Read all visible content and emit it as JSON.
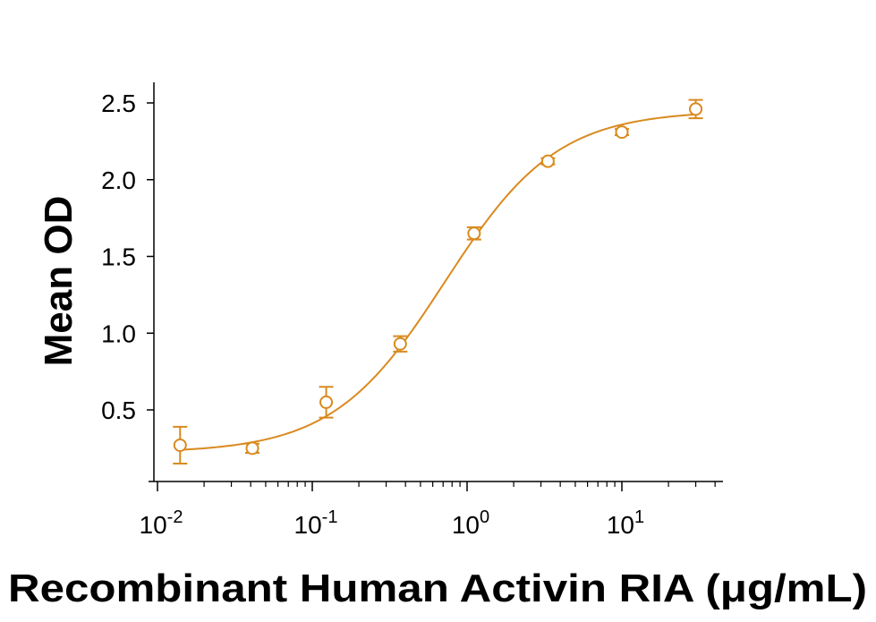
{
  "chart_data": {
    "type": "scatter",
    "title": "",
    "xlabel": "Recombinant Human Activin RIA (μg/mL)",
    "ylabel": "Mean OD",
    "x_scale": "log",
    "xlim": [
      0.011,
      45
    ],
    "ylim": [
      0.1,
      2.6
    ],
    "grid": false,
    "legend": "none",
    "color": "#d98a1e",
    "x_ticks": [
      {
        "value": 0.01,
        "base": "10",
        "exp": "-2"
      },
      {
        "value": 0.1,
        "base": "10",
        "exp": "-1"
      },
      {
        "value": 1,
        "base": "10",
        "exp": "0"
      },
      {
        "value": 10,
        "base": "10",
        "exp": "1"
      }
    ],
    "y_ticks": [
      {
        "value": 0.5,
        "label": "0.5"
      },
      {
        "value": 1.0,
        "label": "1.0"
      },
      {
        "value": 1.5,
        "label": "1.5"
      },
      {
        "value": 2.0,
        "label": "2.0"
      },
      {
        "value": 2.5,
        "label": "2.5"
      }
    ],
    "series": [
      {
        "points": [
          {
            "x": 0.014,
            "y": 0.27,
            "err": 0.12
          },
          {
            "x": 0.041,
            "y": 0.25,
            "err": 0.03
          },
          {
            "x": 0.123,
            "y": 0.55,
            "err": 0.1
          },
          {
            "x": 0.37,
            "y": 0.93,
            "err": 0.05
          },
          {
            "x": 1.11,
            "y": 1.65,
            "err": 0.04
          },
          {
            "x": 3.33,
            "y": 2.12,
            "err": 0.02
          },
          {
            "x": 10.0,
            "y": 2.31,
            "err": 0.02
          },
          {
            "x": 30.0,
            "y": 2.46,
            "err": 0.06
          }
        ],
        "fit": {
          "bottom": 0.22,
          "top": 2.45,
          "ec50": 0.72,
          "hill": 1.2
        }
      }
    ]
  }
}
